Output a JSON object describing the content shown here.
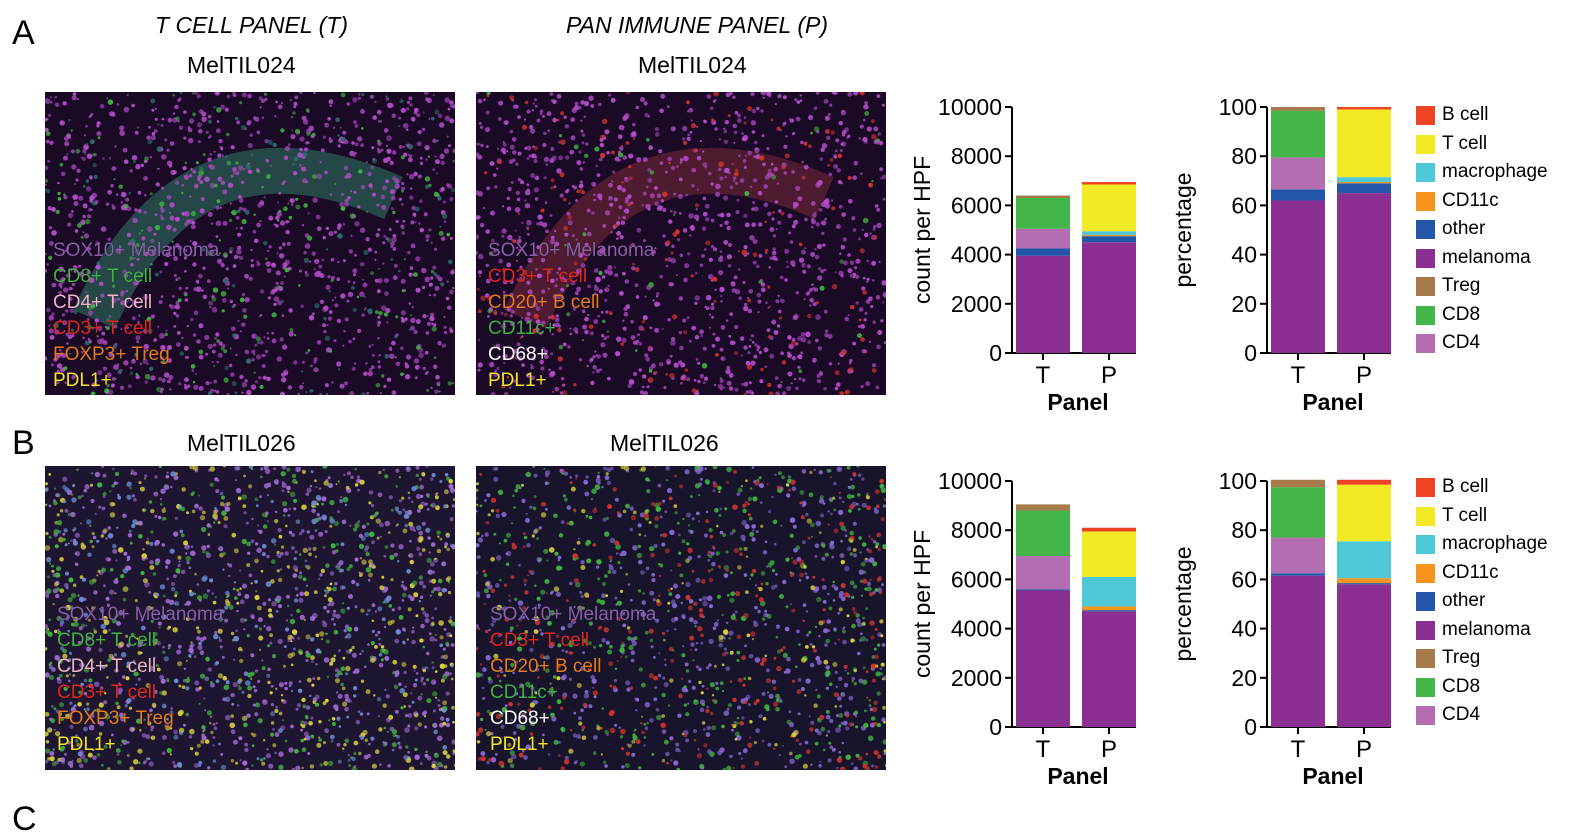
{
  "figure": {
    "panel_letters": [
      "A",
      "B",
      "C"
    ],
    "column_titles": [
      "T CELL PANEL (T)",
      "PAN IMMUNE PANEL (P)"
    ],
    "samples": {
      "a_left": "MelTIL024",
      "a_right": "MelTIL024",
      "b_left": "MelTIL026",
      "b_right": "MelTIL026"
    },
    "image_legends": {
      "t_panel": [
        "SOX10+ Melanoma",
        "CD8+ T cell",
        "CD4+ T cell",
        "CD3+ T cell",
        "FOXP3+ Treg",
        "PDL1+"
      ],
      "p_panel": [
        "SOX10+ Melanoma",
        "CD3+ T cell",
        "CD20+ B cell",
        "CD11c+",
        "CD68+",
        "PDL1+"
      ]
    },
    "legend_colors": {
      "t_panel": [
        "#8a5fa8",
        "#3fb33f",
        "#f2b3c6",
        "#e0261f",
        "#e67b1e",
        "#f2e52a"
      ],
      "p_panel": [
        "#8a5fa8",
        "#e0261f",
        "#e67b1e",
        "#3fb33f",
        "#ffffff",
        "#f2e52a"
      ]
    }
  },
  "cell_legend": {
    "entries": [
      "B cell",
      "T cell",
      "macrophage",
      "CD11c",
      "other",
      "melanoma",
      "Treg",
      "CD8",
      "CD4"
    ],
    "colors": {
      "B cell": "#ee4423",
      "T cell": "#f1ea24",
      "macrophage": "#4ec7d6",
      "CD11c": "#f7941d",
      "other": "#2356a8",
      "melanoma": "#8b2f93",
      "Treg": "#a67a4a",
      "CD8": "#44b549",
      "CD4": "#b46db1"
    }
  },
  "chart_data": [
    {
      "id": "A-count",
      "type": "bar",
      "stacked": true,
      "categories": [
        "T",
        "P"
      ],
      "xlabel": "Panel",
      "ylabel": "count per HPF",
      "ylim": [
        0,
        10000
      ],
      "yticks": [
        "0",
        "2000",
        "4000",
        "6000",
        "8000",
        "10000"
      ],
      "stack_order": [
        "melanoma",
        "other",
        "CD4",
        "CD8",
        "Treg",
        "CD11c",
        "macrophage",
        "T cell",
        "B cell"
      ],
      "series": [
        {
          "name": "melanoma",
          "values": [
            3950,
            4500
          ]
        },
        {
          "name": "other",
          "values": [
            300,
            250
          ]
        },
        {
          "name": "CD4",
          "values": [
            800,
            0
          ]
        },
        {
          "name": "CD8",
          "values": [
            1250,
            0
          ]
        },
        {
          "name": "Treg",
          "values": [
            100,
            0
          ]
        },
        {
          "name": "CD11c",
          "values": [
            0,
            50
          ]
        },
        {
          "name": "macrophage",
          "values": [
            0,
            150
          ]
        },
        {
          "name": "T cell",
          "values": [
            0,
            1900
          ]
        },
        {
          "name": "B cell",
          "values": [
            0,
            100
          ]
        }
      ]
    },
    {
      "id": "A-pct",
      "type": "bar",
      "stacked": true,
      "categories": [
        "T",
        "P"
      ],
      "xlabel": "Panel",
      "ylabel": "percentage",
      "ylim": [
        0,
        100
      ],
      "yticks": [
        "0",
        "20",
        "40",
        "60",
        "80",
        "100"
      ],
      "stack_order": [
        "melanoma",
        "other",
        "CD4",
        "CD8",
        "Treg",
        "CD11c",
        "macrophage",
        "T cell",
        "B cell"
      ],
      "series": [
        {
          "name": "melanoma",
          "values": [
            62,
            65
          ]
        },
        {
          "name": "other",
          "values": [
            4.5,
            4
          ]
        },
        {
          "name": "CD4",
          "values": [
            13,
            0
          ]
        },
        {
          "name": "CD8",
          "values": [
            19,
            0
          ]
        },
        {
          "name": "Treg",
          "values": [
            1.5,
            0
          ]
        },
        {
          "name": "CD11c",
          "values": [
            0,
            0.5
          ]
        },
        {
          "name": "macrophage",
          "values": [
            0,
            2
          ]
        },
        {
          "name": "T cell",
          "values": [
            0,
            27.5
          ]
        },
        {
          "name": "B cell",
          "values": [
            0,
            1
          ]
        }
      ]
    },
    {
      "id": "B-count",
      "type": "bar",
      "stacked": true,
      "categories": [
        "T",
        "P"
      ],
      "xlabel": "Panel",
      "ylabel": "count per HPF",
      "ylim": [
        0,
        10000
      ],
      "yticks": [
        "0",
        "2000",
        "4000",
        "6000",
        "8000",
        "10000"
      ],
      "stack_order": [
        "melanoma",
        "other",
        "CD4",
        "CD8",
        "Treg",
        "CD11c",
        "macrophage",
        "T cell",
        "B cell"
      ],
      "series": [
        {
          "name": "melanoma",
          "values": [
            5550,
            4700
          ]
        },
        {
          "name": "other",
          "values": [
            50,
            50
          ]
        },
        {
          "name": "CD4",
          "values": [
            1350,
            0
          ]
        },
        {
          "name": "CD8",
          "values": [
            1850,
            0
          ]
        },
        {
          "name": "Treg",
          "values": [
            250,
            0
          ]
        },
        {
          "name": "CD11c",
          "values": [
            0,
            150
          ]
        },
        {
          "name": "macrophage",
          "values": [
            0,
            1200
          ]
        },
        {
          "name": "T cell",
          "values": [
            0,
            1850
          ]
        },
        {
          "name": "B cell",
          "values": [
            0,
            150
          ]
        }
      ]
    },
    {
      "id": "B-pct",
      "type": "bar",
      "stacked": true,
      "categories": [
        "T",
        "P"
      ],
      "xlabel": "Panel",
      "ylabel": "percentage",
      "ylim": [
        0,
        100
      ],
      "yticks": [
        "0",
        "20",
        "40",
        "60",
        "80",
        "100"
      ],
      "stack_order": [
        "melanoma",
        "other",
        "CD4",
        "CD8",
        "Treg",
        "CD11c",
        "macrophage",
        "T cell",
        "B cell"
      ],
      "series": [
        {
          "name": "melanoma",
          "values": [
            61.5,
            58
          ]
        },
        {
          "name": "other",
          "values": [
            1,
            0.5
          ]
        },
        {
          "name": "CD4",
          "values": [
            14.5,
            0
          ]
        },
        {
          "name": "CD8",
          "values": [
            20.5,
            0
          ]
        },
        {
          "name": "Treg",
          "values": [
            3,
            0
          ]
        },
        {
          "name": "CD11c",
          "values": [
            0,
            2
          ]
        },
        {
          "name": "macrophage",
          "values": [
            0,
            15
          ]
        },
        {
          "name": "T cell",
          "values": [
            0,
            23
          ]
        },
        {
          "name": "B cell",
          "values": [
            0,
            2
          ]
        }
      ]
    }
  ]
}
